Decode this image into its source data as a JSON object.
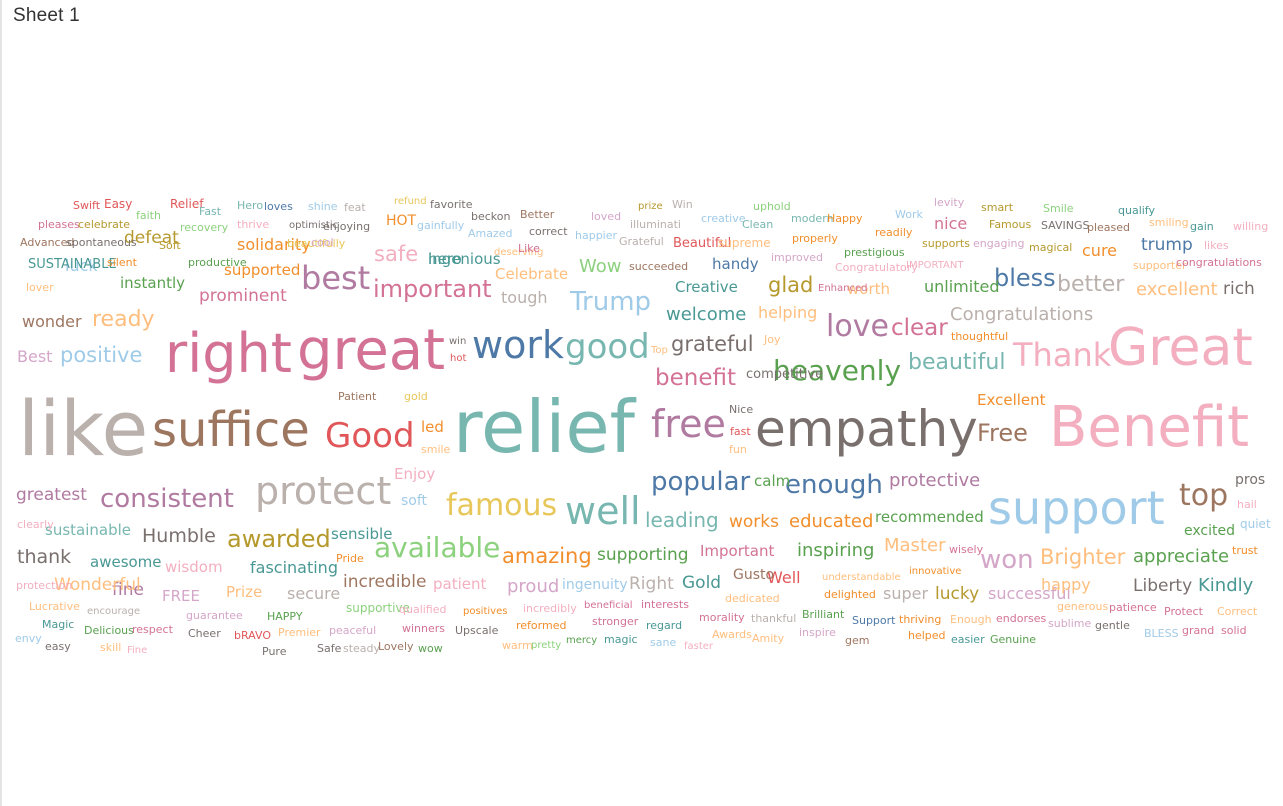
{
  "sheet": {
    "title": "Sheet 1"
  },
  "chart_data": {
    "type": "word-cloud",
    "palette": {
      "teal": "#78b7b0",
      "beige": "#bab0ac",
      "pink": "#f3afc0",
      "rose": "#d37295",
      "blue": "#4e79a7",
      "lightblue": "#a0cbe8",
      "brown": "#9d7660",
      "red": "#e15759",
      "green": "#59a14f",
      "lightgreen": "#8cd17d",
      "orange": "#f28e2b",
      "lightorange": "#ffbe7d",
      "yellow": "#e8c75a",
      "gold": "#b6992d",
      "purple": "#b07aa1",
      "lilac": "#d4a6c8",
      "gray": "#79706e",
      "darkteal": "#499894",
      "darkgreen": "#4f8f3e"
    },
    "words": [
      {
        "text": "like",
        "color": "#bab0ac"
      },
      {
        "text": "suffice",
        "color": "#9d7660"
      },
      {
        "text": "Good",
        "color": "#e15759"
      },
      {
        "text": "led",
        "color": "#f28e2b"
      },
      {
        "text": "smile",
        "color": "#ffbe7d"
      },
      {
        "text": "relief",
        "color": "#78b7b0"
      },
      {
        "text": "free",
        "color": "#b07aa1"
      },
      {
        "text": "empathy",
        "color": "#79706e"
      },
      {
        "text": "Free",
        "color": "#9d7660"
      },
      {
        "text": "Benefit",
        "color": "#f3afc0"
      },
      {
        "text": "right",
        "color": "#d37295"
      },
      {
        "text": "great",
        "color": "#d37295"
      },
      {
        "text": "work",
        "color": "#4e79a7"
      },
      {
        "text": "good",
        "color": "#78b7b0"
      },
      {
        "text": "grateful",
        "color": "#79706e"
      },
      {
        "text": "love",
        "color": "#b07aa1"
      },
      {
        "text": "clear",
        "color": "#d37295"
      },
      {
        "text": "Thank",
        "color": "#f3afc0"
      },
      {
        "text": "Great",
        "color": "#f3afc0"
      },
      {
        "text": "support",
        "color": "#a0cbe8"
      },
      {
        "text": "protect",
        "color": "#bab0ac"
      },
      {
        "text": "well",
        "color": "#78b7b0"
      },
      {
        "text": "famous",
        "color": "#e8c75a"
      },
      {
        "text": "popular",
        "color": "#4e79a7"
      },
      {
        "text": "enough",
        "color": "#4e79a7"
      },
      {
        "text": "top",
        "color": "#9d7660"
      },
      {
        "text": "consistent",
        "color": "#b07aa1"
      },
      {
        "text": "best",
        "color": "#b07aa1"
      },
      {
        "text": "important",
        "color": "#d37295"
      },
      {
        "text": "Trump",
        "color": "#a0cbe8"
      },
      {
        "text": "heavenly",
        "color": "#59a14f"
      },
      {
        "text": "beautiful",
        "color": "#78b7b0"
      },
      {
        "text": "bless",
        "color": "#4e79a7"
      },
      {
        "text": "better",
        "color": "#bab0ac"
      },
      {
        "text": "available",
        "color": "#8cd17d"
      },
      {
        "text": "amazing",
        "color": "#f28e2b"
      },
      {
        "text": "awarded",
        "color": "#b6992d"
      },
      {
        "text": "won",
        "color": "#d4a6c8"
      },
      {
        "text": "Brighter",
        "color": "#ffbe7d"
      },
      {
        "text": "positive",
        "color": "#a0cbe8"
      },
      {
        "text": "Best",
        "color": "#d4a6c8"
      },
      {
        "text": "ready",
        "color": "#ffbe7d"
      },
      {
        "text": "wonder",
        "color": "#9d7660"
      },
      {
        "text": "benefit",
        "color": "#d37295"
      },
      {
        "text": "safe",
        "color": "#f3afc0"
      },
      {
        "text": "glad",
        "color": "#b6992d"
      },
      {
        "text": "Congratulations",
        "color": "#bab0ac"
      },
      {
        "text": "excellent",
        "color": "#ffbe7d"
      },
      {
        "text": "rich",
        "color": "#79706e"
      },
      {
        "text": "Humble",
        "color": "#79706e"
      },
      {
        "text": "thank",
        "color": "#79706e"
      },
      {
        "text": "greatest",
        "color": "#b07aa1"
      },
      {
        "text": "leading",
        "color": "#78b7b0"
      },
      {
        "text": "works",
        "color": "#f28e2b"
      },
      {
        "text": "educated",
        "color": "#f28e2b"
      },
      {
        "text": "inspiring",
        "color": "#59a14f"
      },
      {
        "text": "appreciate",
        "color": "#59a14f"
      },
      {
        "text": "Master",
        "color": "#ffbe7d"
      },
      {
        "text": "supporting",
        "color": "#59a14f"
      },
      {
        "text": "Important",
        "color": "#d37295"
      },
      {
        "text": "prominent",
        "color": "#d37295"
      },
      {
        "text": "welcome",
        "color": "#499894"
      },
      {
        "text": "helping",
        "color": "#ffbe7d"
      },
      {
        "text": "protective",
        "color": "#b07aa1"
      },
      {
        "text": "Kindly",
        "color": "#499894"
      },
      {
        "text": "Liberty",
        "color": "#79706e"
      },
      {
        "text": "Gold",
        "color": "#499894"
      },
      {
        "text": "Right",
        "color": "#bab0ac"
      },
      {
        "text": "proud",
        "color": "#d4a6c8"
      },
      {
        "text": "incredible",
        "color": "#9d7660"
      },
      {
        "text": "fascinating",
        "color": "#499894"
      },
      {
        "text": "awesome",
        "color": "#499894"
      },
      {
        "text": "Excellent",
        "color": "#f28e2b"
      },
      {
        "text": "recommended",
        "color": "#59a14f"
      },
      {
        "text": "excited",
        "color": "#59a14f"
      },
      {
        "text": "sustainable",
        "color": "#78b7b0"
      },
      {
        "text": "Wow",
        "color": "#8cd17d"
      },
      {
        "text": "ingenious",
        "color": "#499894"
      },
      {
        "text": "Celebrate",
        "color": "#ffbe7d"
      },
      {
        "text": "Creative",
        "color": "#499894"
      },
      {
        "text": "hero",
        "color": "#499894"
      },
      {
        "text": "luck",
        "color": "#a0cbe8"
      },
      {
        "text": "defeat",
        "color": "#b6992d"
      },
      {
        "text": "solidarity",
        "color": "#f28e2b"
      },
      {
        "text": "supported",
        "color": "#f28e2b"
      },
      {
        "text": "instantly",
        "color": "#59a14f"
      },
      {
        "text": "unlimited",
        "color": "#59a14f"
      },
      {
        "text": "worth",
        "color": "#ffbe7d"
      },
      {
        "text": "trump",
        "color": "#4e79a7"
      },
      {
        "text": "cure",
        "color": "#f28e2b"
      },
      {
        "text": "nice",
        "color": "#d37295"
      },
      {
        "text": "super",
        "color": "#bab0ac"
      },
      {
        "text": "lucky",
        "color": "#b6992d"
      },
      {
        "text": "successful",
        "color": "#d4a6c8"
      },
      {
        "text": "happy",
        "color": "#ffbe7d"
      },
      {
        "text": "Well",
        "color": "#e15759"
      },
      {
        "text": "Gusto",
        "color": "#9d7660"
      },
      {
        "text": "secure",
        "color": "#bab0ac"
      },
      {
        "text": "FREE",
        "color": "#d4a6c8"
      },
      {
        "text": "fine",
        "color": "#b07aa1"
      },
      {
        "text": "Wonderful",
        "color": "#ffbe7d"
      },
      {
        "text": "wisdom",
        "color": "#f3afc0"
      },
      {
        "text": "Prize",
        "color": "#ffbe7d"
      },
      {
        "text": "sensible",
        "color": "#499894"
      },
      {
        "text": "ingenuity",
        "color": "#a0cbe8"
      },
      {
        "text": "patient",
        "color": "#f3afc0"
      },
      {
        "text": "tough",
        "color": "#bab0ac"
      },
      {
        "text": "handy",
        "color": "#4e79a7"
      },
      {
        "text": "Enjoy",
        "color": "#f3afc0"
      },
      {
        "text": "soft",
        "color": "#a0cbe8"
      },
      {
        "text": "calm",
        "color": "#59a14f"
      },
      {
        "text": "Swift",
        "color": "#e15759"
      },
      {
        "text": "Easy",
        "color": "#e15759"
      },
      {
        "text": "Relief",
        "color": "#e15759"
      },
      {
        "text": "faith",
        "color": "#8cd17d"
      },
      {
        "text": "Fast",
        "color": "#78b7b0"
      },
      {
        "text": "Hero",
        "color": "#78b7b0"
      },
      {
        "text": "loves",
        "color": "#4e79a7"
      },
      {
        "text": "shine",
        "color": "#a0cbe8"
      },
      {
        "text": "feat",
        "color": "#bab0ac"
      },
      {
        "text": "refund",
        "color": "#e8c75a"
      },
      {
        "text": "favorite",
        "color": "#79706e"
      },
      {
        "text": "beckon",
        "color": "#79706e"
      },
      {
        "text": "Better",
        "color": "#9d7660"
      },
      {
        "text": "loved",
        "color": "#d4a6c8"
      },
      {
        "text": "prize",
        "color": "#b6992d"
      },
      {
        "text": "Win",
        "color": "#bab0ac"
      },
      {
        "text": "uphold",
        "color": "#8cd17d"
      },
      {
        "text": "creative",
        "color": "#a0cbe8"
      },
      {
        "text": "Clean",
        "color": "#78b7b0"
      },
      {
        "text": "modern",
        "color": "#78b7b0"
      },
      {
        "text": "Happy",
        "color": "#f28e2b"
      },
      {
        "text": "Work",
        "color": "#a0cbe8"
      },
      {
        "text": "levity",
        "color": "#d4a6c8"
      },
      {
        "text": "smart",
        "color": "#b6992d"
      },
      {
        "text": "Smile",
        "color": "#8cd17d"
      },
      {
        "text": "qualify",
        "color": "#499894"
      },
      {
        "text": "smiling",
        "color": "#ffbe7d"
      },
      {
        "text": "gain",
        "color": "#499894"
      },
      {
        "text": "willing",
        "color": "#f3afc0"
      },
      {
        "text": "pleases",
        "color": "#d37295"
      },
      {
        "text": "celebrate",
        "color": "#b6992d"
      },
      {
        "text": "recovery",
        "color": "#8cd17d"
      },
      {
        "text": "thrive",
        "color": "#f3afc0"
      },
      {
        "text": "optimistic",
        "color": "#79706e"
      },
      {
        "text": "enjoying",
        "color": "#79706e"
      },
      {
        "text": "gainfully",
        "color": "#a0cbe8"
      },
      {
        "text": "Amazed",
        "color": "#a0cbe8"
      },
      {
        "text": "correct",
        "color": "#79706e"
      },
      {
        "text": "happier",
        "color": "#a0cbe8"
      },
      {
        "text": "illuminati",
        "color": "#bab0ac"
      },
      {
        "text": "Grateful",
        "color": "#bab0ac"
      },
      {
        "text": "readily",
        "color": "#f28e2b"
      },
      {
        "text": "Famous",
        "color": "#b6992d"
      },
      {
        "text": "SAVINGS",
        "color": "#79706e"
      },
      {
        "text": "pleased",
        "color": "#9d7660"
      },
      {
        "text": "Advanced",
        "color": "#9d7660"
      },
      {
        "text": "spontaneous",
        "color": "#79706e"
      },
      {
        "text": "Soft",
        "color": "#b6992d"
      },
      {
        "text": "beautifully",
        "color": "#e8c75a"
      },
      {
        "text": "cool",
        "color": "#d4a6c8"
      },
      {
        "text": "HOT",
        "color": "#f28e2b"
      },
      {
        "text": "deserving",
        "color": "#ffbe7d"
      },
      {
        "text": "Like",
        "color": "#d37295"
      },
      {
        "text": "Beautiful",
        "color": "#e15759"
      },
      {
        "text": "supreme",
        "color": "#ffbe7d"
      },
      {
        "text": "properly",
        "color": "#f28e2b"
      },
      {
        "text": "supports",
        "color": "#b6992d"
      },
      {
        "text": "engaging",
        "color": "#d4a6c8"
      },
      {
        "text": "magical",
        "color": "#b6992d"
      },
      {
        "text": "likes",
        "color": "#f3afc0"
      },
      {
        "text": "SUSTAINABLE",
        "color": "#499894"
      },
      {
        "text": "silent",
        "color": "#f28e2b"
      },
      {
        "text": "productive",
        "color": "#59a14f"
      },
      {
        "text": "succeeded",
        "color": "#9d7660"
      },
      {
        "text": "improved",
        "color": "#d4a6c8"
      },
      {
        "text": "prestigious",
        "color": "#59a14f"
      },
      {
        "text": "Congratulatory",
        "color": "#f3afc0"
      },
      {
        "text": "IMPORTANT",
        "color": "#f3afc0"
      },
      {
        "text": "supporter",
        "color": "#ffbe7d"
      },
      {
        "text": "congratulations",
        "color": "#d37295"
      },
      {
        "text": "lover",
        "color": "#ffbe7d"
      },
      {
        "text": "Enhanced",
        "color": "#d37295"
      },
      {
        "text": "thoughtful",
        "color": "#f28e2b"
      },
      {
        "text": "Joy",
        "color": "#ffbe7d"
      },
      {
        "text": "win",
        "color": "#79706e"
      },
      {
        "text": "hot",
        "color": "#e15759"
      },
      {
        "text": "Top",
        "color": "#ffbe7d"
      },
      {
        "text": "competitive",
        "color": "#79706e"
      },
      {
        "text": "Patient",
        "color": "#9d7660"
      },
      {
        "text": "gold",
        "color": "#e8c75a"
      },
      {
        "text": "Nice",
        "color": "#79706e"
      },
      {
        "text": "fast",
        "color": "#e15759"
      },
      {
        "text": "fun",
        "color": "#ffbe7d"
      },
      {
        "text": "pros",
        "color": "#79706e"
      },
      {
        "text": "hail",
        "color": "#f3afc0"
      },
      {
        "text": "quiet",
        "color": "#a0cbe8"
      },
      {
        "text": "trust",
        "color": "#f28e2b"
      },
      {
        "text": "clearly",
        "color": "#f3afc0"
      },
      {
        "text": "Pride",
        "color": "#f28e2b"
      },
      {
        "text": "wisely",
        "color": "#d37295"
      },
      {
        "text": "protection",
        "color": "#f3afc0"
      },
      {
        "text": "understandable",
        "color": "#ffbe7d"
      },
      {
        "text": "innovative",
        "color": "#f28e2b"
      },
      {
        "text": "dedicated",
        "color": "#ffbe7d"
      },
      {
        "text": "delighted",
        "color": "#f28e2b"
      },
      {
        "text": "Lucrative",
        "color": "#ffbe7d"
      },
      {
        "text": "encourage",
        "color": "#bab0ac"
      },
      {
        "text": "guarantee",
        "color": "#d4a6c8"
      },
      {
        "text": "HAPPY",
        "color": "#59a14f"
      },
      {
        "text": "supportive",
        "color": "#8cd17d"
      },
      {
        "text": "qualified",
        "color": "#f3afc0"
      },
      {
        "text": "positives",
        "color": "#f28e2b"
      },
      {
        "text": "incredibly",
        "color": "#f3afc0"
      },
      {
        "text": "beneficial",
        "color": "#d37295"
      },
      {
        "text": "interests",
        "color": "#d37295"
      },
      {
        "text": "morality",
        "color": "#d37295"
      },
      {
        "text": "thankful",
        "color": "#bab0ac"
      },
      {
        "text": "Brilliant",
        "color": "#59a14f"
      },
      {
        "text": "Support",
        "color": "#4e79a7"
      },
      {
        "text": "thriving",
        "color": "#f28e2b"
      },
      {
        "text": "Enough",
        "color": "#ffbe7d"
      },
      {
        "text": "endorses",
        "color": "#d37295"
      },
      {
        "text": "generous",
        "color": "#ffbe7d"
      },
      {
        "text": "patience",
        "color": "#d37295"
      },
      {
        "text": "Protect",
        "color": "#d37295"
      },
      {
        "text": "Correct",
        "color": "#ffbe7d"
      },
      {
        "text": "Magic",
        "color": "#499894"
      },
      {
        "text": "Delicious",
        "color": "#59a14f"
      },
      {
        "text": "respect",
        "color": "#d37295"
      },
      {
        "text": "Cheer",
        "color": "#79706e"
      },
      {
        "text": "bRAVO",
        "color": "#e15759"
      },
      {
        "text": "Premier",
        "color": "#ffbe7d"
      },
      {
        "text": "peaceful",
        "color": "#d4a6c8"
      },
      {
        "text": "winners",
        "color": "#d37295"
      },
      {
        "text": "Upscale",
        "color": "#79706e"
      },
      {
        "text": "reformed",
        "color": "#f28e2b"
      },
      {
        "text": "stronger",
        "color": "#d37295"
      },
      {
        "text": "regard",
        "color": "#499894"
      },
      {
        "text": "Awards",
        "color": "#ffbe7d"
      },
      {
        "text": "inspire",
        "color": "#d4a6c8"
      },
      {
        "text": "helped",
        "color": "#f28e2b"
      },
      {
        "text": "easier",
        "color": "#499894"
      },
      {
        "text": "Genuine",
        "color": "#59a14f"
      },
      {
        "text": "sublime",
        "color": "#d4a6c8"
      },
      {
        "text": "gentle",
        "color": "#79706e"
      },
      {
        "text": "BLESS",
        "color": "#a0cbe8"
      },
      {
        "text": "grand",
        "color": "#d37295"
      },
      {
        "text": "solid",
        "color": "#d37295"
      },
      {
        "text": "envy",
        "color": "#a0cbe8"
      },
      {
        "text": "easy",
        "color": "#79706e"
      },
      {
        "text": "skill",
        "color": "#ffbe7d"
      },
      {
        "text": "Fine",
        "color": "#f3afc0"
      },
      {
        "text": "Pure",
        "color": "#79706e"
      },
      {
        "text": "Safe",
        "color": "#79706e"
      },
      {
        "text": "steady",
        "color": "#bab0ac"
      },
      {
        "text": "Lovely",
        "color": "#9d7660"
      },
      {
        "text": "wow",
        "color": "#59a14f"
      },
      {
        "text": "warm",
        "color": "#ffbe7d"
      },
      {
        "text": "pretty",
        "color": "#8cd17d"
      },
      {
        "text": "mercy",
        "color": "#59a14f"
      },
      {
        "text": "magic",
        "color": "#499894"
      },
      {
        "text": "sane",
        "color": "#a0cbe8"
      },
      {
        "text": "faster",
        "color": "#f3afc0"
      },
      {
        "text": "Amity",
        "color": "#ffbe7d"
      },
      {
        "text": "gem",
        "color": "#9d7660"
      }
    ]
  }
}
